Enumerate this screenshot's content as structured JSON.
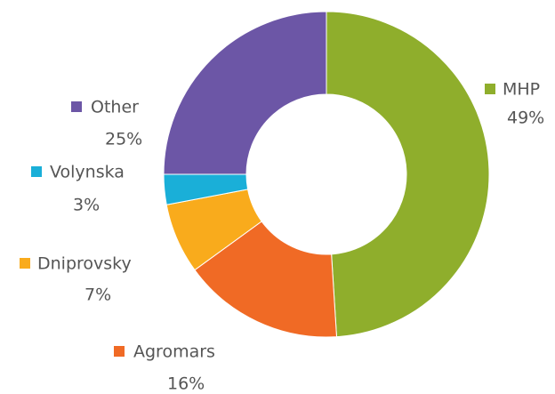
{
  "chart_data": {
    "type": "donut",
    "categories": [
      "MHP",
      "Agromars",
      "Dniprovsky",
      "Volynska",
      "Other"
    ],
    "values": [
      49,
      16,
      7,
      3,
      25
    ],
    "value_labels": [
      "49%",
      "16%",
      "7%",
      "3%",
      "25%"
    ],
    "colors": [
      "#8fae2c",
      "#f06a25",
      "#f9ab1c",
      "#1aafd8",
      "#6c56a6"
    ]
  }
}
